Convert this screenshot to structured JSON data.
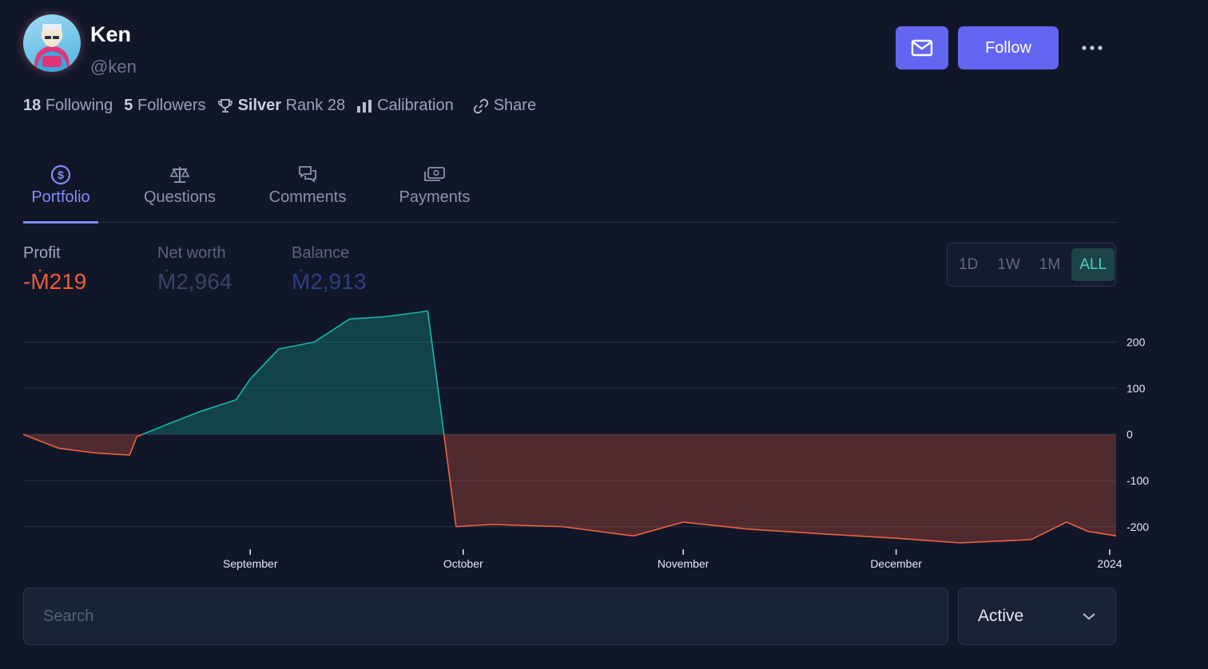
{
  "profile": {
    "name": "Ken",
    "handle": "@ken",
    "avatar_icon": "avatar-illustration"
  },
  "actions": {
    "message_icon": "mail-icon",
    "follow_label": "Follow",
    "more_icon": "ellipsis-icon"
  },
  "stats": {
    "following_count": "18",
    "following_label": "Following",
    "followers_count": "5",
    "followers_label": "Followers",
    "rank_tier": "Silver",
    "rank_label": "Rank 28",
    "calibration_label": "Calibration",
    "share_label": "Share"
  },
  "tabs": [
    {
      "label": "Portfolio",
      "icon": "dollar-circle-icon",
      "active": true
    },
    {
      "label": "Questions",
      "icon": "scale-icon",
      "active": false
    },
    {
      "label": "Comments",
      "icon": "chat-bubbles-icon",
      "active": false
    },
    {
      "label": "Payments",
      "icon": "cash-icon",
      "active": false
    }
  ],
  "metrics": {
    "profit_label": "Profit",
    "profit_value": "-Ṁ219",
    "net_worth_label": "Net worth",
    "net_worth_value": "Ṁ2,964",
    "balance_label": "Balance",
    "balance_value": "Ṁ2,913"
  },
  "time_range": {
    "options": [
      "1D",
      "1W",
      "1M",
      "ALL"
    ],
    "selected": "ALL"
  },
  "chart_data": {
    "type": "area",
    "title": "",
    "xlabel": "",
    "ylabel": "",
    "x_ticks": [
      "September",
      "October",
      "November",
      "December",
      "2024"
    ],
    "y_ticks": [
      200,
      100,
      0,
      -100,
      -200
    ],
    "ylim": [
      -235,
      270
    ],
    "grid": true,
    "positive_color": "#14b8a6",
    "negative_color": "#f0613f",
    "series": [
      {
        "x": [
          "2023-07-31",
          "2023-08-05",
          "2023-08-10",
          "2023-08-15",
          "2023-08-16",
          "2023-08-20",
          "2023-08-25",
          "2023-08-30",
          "2023-09-01",
          "2023-09-05",
          "2023-09-10",
          "2023-09-15",
          "2023-09-20",
          "2023-09-25",
          "2023-09-26",
          "2023-09-30",
          "2023-10-05",
          "2023-10-15",
          "2023-10-25",
          "2023-11-01",
          "2023-11-10",
          "2023-11-20",
          "2023-12-01",
          "2023-12-10",
          "2023-12-20",
          "2023-12-25",
          "2023-12-28",
          "2024-01-01"
        ],
        "y": [
          0,
          -30,
          -40,
          -45,
          -5,
          20,
          50,
          75,
          120,
          185,
          200,
          250,
          255,
          265,
          268,
          -200,
          -195,
          -200,
          -220,
          -190,
          -205,
          -215,
          -225,
          -235,
          -228,
          -190,
          -210,
          -220
        ]
      }
    ]
  },
  "filters": {
    "search_placeholder": "Search",
    "status_value": "Active"
  }
}
